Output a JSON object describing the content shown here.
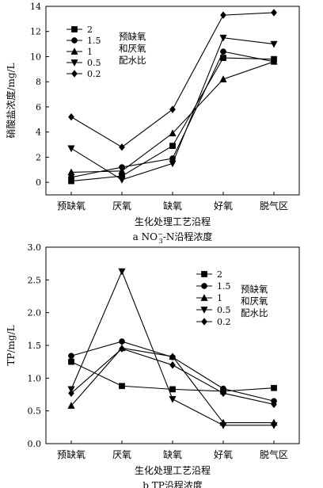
{
  "chart_data": [
    {
      "type": "line",
      "id": "no3",
      "categories": [
        "预缺氧",
        "厌氧",
        "缺氧",
        "好氧",
        "脱气区"
      ],
      "xlabel": "生化处理工艺沿程",
      "ylabel": "硝酸盐浓度/mg/L",
      "caption_prefix": "a NO",
      "caption_sub": "3",
      "caption_sup": "−",
      "caption_suffix": "-N沿程浓度",
      "ylim": [
        -1,
        14
      ],
      "yticks": [
        0,
        2,
        4,
        6,
        8,
        10,
        12,
        14
      ],
      "legend_title": [
        "预缺氧",
        "和厌氧",
        "配水比"
      ],
      "series": [
        {
          "name": "2",
          "marker": "square",
          "values": [
            0.1,
            0.5,
            2.9,
            9.9,
            9.8
          ]
        },
        {
          "name": "1.5",
          "marker": "circle",
          "values": [
            0.4,
            1.2,
            1.9,
            10.4,
            9.6
          ]
        },
        {
          "name": "1",
          "marker": "triangle",
          "values": [
            0.8,
            0.9,
            3.9,
            8.2,
            9.6
          ]
        },
        {
          "name": "0.5",
          "marker": "tri-down",
          "values": [
            2.7,
            0.2,
            1.5,
            11.5,
            11.0
          ]
        },
        {
          "name": "0.2",
          "marker": "diamond",
          "values": [
            5.2,
            2.8,
            5.8,
            13.3,
            13.5
          ]
        }
      ]
    },
    {
      "type": "line",
      "id": "tp",
      "categories": [
        "预缺氧",
        "厌氧",
        "缺氧",
        "好氧",
        "脱气区"
      ],
      "xlabel": "生化处理工艺沿程",
      "ylabel": "TP/mg/L",
      "caption_prefix": "b TP沿程浓度",
      "ylim": [
        0,
        3.0
      ],
      "yticks": [
        0.0,
        0.5,
        1.0,
        1.5,
        2.0,
        2.5,
        3.0
      ],
      "ytick_labels": [
        "0.0",
        "0.5",
        "1.0",
        "1.5",
        "2.0",
        "2.5",
        "3.0"
      ],
      "legend_title": [
        "预缺氧",
        "和厌氧",
        "配水比"
      ],
      "series": [
        {
          "name": "2",
          "marker": "square",
          "values": [
            1.25,
            0.88,
            0.83,
            0.8,
            0.85
          ]
        },
        {
          "name": "1.5",
          "marker": "circle",
          "values": [
            1.34,
            1.56,
            1.32,
            0.84,
            0.65
          ]
        },
        {
          "name": "1",
          "marker": "triangle",
          "values": [
            0.58,
            1.46,
            1.33,
            0.32,
            0.32
          ]
        },
        {
          "name": "0.5",
          "marker": "tri-down",
          "values": [
            0.83,
            2.63,
            0.68,
            0.28,
            0.28
          ]
        },
        {
          "name": "0.2",
          "marker": "diamond",
          "values": [
            0.77,
            1.45,
            1.2,
            0.77,
            0.6
          ]
        }
      ]
    }
  ]
}
